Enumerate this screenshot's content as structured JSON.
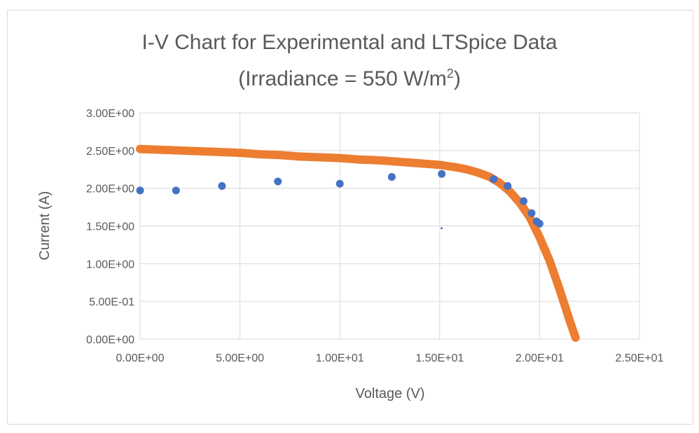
{
  "chart_data": {
    "type": "scatter",
    "title_line1": "I-V Chart for Experimental and LTSpice Data",
    "title_line2_prefix": "(Irradiance = 550 W/m",
    "title_line2_sup": "2",
    "title_line2_suffix": ")",
    "xlabel": "Voltage (V)",
    "ylabel": "Current (A)",
    "xlim": [
      0,
      25
    ],
    "ylim": [
      0,
      3
    ],
    "xticks": [
      {
        "value": 0,
        "label": "0.00E+00"
      },
      {
        "value": 5,
        "label": "5.00E+00"
      },
      {
        "value": 10,
        "label": "1.00E+01"
      },
      {
        "value": 15,
        "label": "1.50E+01"
      },
      {
        "value": 20,
        "label": "2.00E+01"
      },
      {
        "value": 25,
        "label": "2.50E+01"
      }
    ],
    "yticks": [
      {
        "value": 0,
        "label": "0.00E+00"
      },
      {
        "value": 0.5,
        "label": "5.00E-01"
      },
      {
        "value": 1.0,
        "label": "1.00E+00"
      },
      {
        "value": 1.5,
        "label": "1.50E+00"
      },
      {
        "value": 2.0,
        "label": "2.00E+00"
      },
      {
        "value": 2.5,
        "label": "2.50E+00"
      },
      {
        "value": 3.0,
        "label": "3.00E+00"
      }
    ],
    "grid": true,
    "legend": "none",
    "series": [
      {
        "color": "#ED7D31",
        "marker_size": 6,
        "x": [
          0,
          1,
          2,
          3,
          4,
          5,
          6,
          7,
          8,
          9,
          10,
          11,
          12,
          13,
          14,
          15,
          15.5,
          16,
          16.5,
          17,
          17.5,
          18,
          18.5,
          19,
          19.5,
          20,
          20.5,
          21,
          21.5,
          21.8
        ],
        "y": [
          2.52,
          2.51,
          2.5,
          2.49,
          2.48,
          2.47,
          2.45,
          2.44,
          2.42,
          2.41,
          2.4,
          2.38,
          2.37,
          2.35,
          2.33,
          2.31,
          2.29,
          2.27,
          2.24,
          2.2,
          2.15,
          2.07,
          1.96,
          1.81,
          1.62,
          1.35,
          1.04,
          0.66,
          0.25,
          0.02
        ]
      },
      {
        "color": "#4472C4",
        "marker_size": 5.5,
        "x": [
          0,
          1.8,
          4.1,
          6.9,
          10.0,
          12.6,
          15.1,
          17.7,
          18.4,
          19.2,
          19.6,
          19.85,
          20.0
        ],
        "y": [
          1.97,
          1.97,
          2.03,
          2.09,
          2.06,
          2.15,
          2.19,
          2.12,
          2.03,
          1.83,
          1.67,
          1.56,
          1.53
        ]
      },
      {
        "color": "#4472C4",
        "marker_size": 1.5,
        "x": [
          15.1
        ],
        "y": [
          1.47
        ]
      }
    ]
  }
}
